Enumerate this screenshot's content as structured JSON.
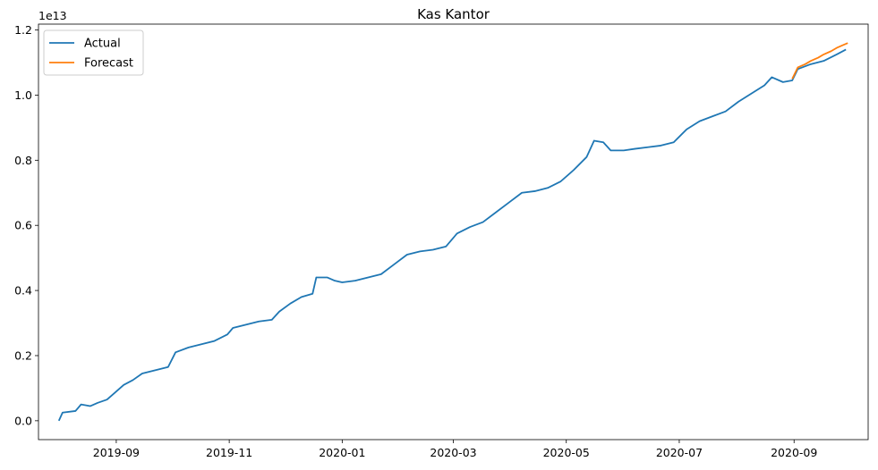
{
  "chart_data": {
    "type": "line",
    "title": "Kas Kantor",
    "xlabel": "",
    "ylabel": "",
    "y_offset_text": "1e13",
    "y_scale": 10000000000000.0,
    "ylim": [
      -0.058,
      1.218
    ],
    "xlim": [
      "2019-07-21",
      "2020-10-11"
    ],
    "x_ticks": [
      "2019-09",
      "2019-11",
      "2020-01",
      "2020-03",
      "2020-05",
      "2020-07",
      "2020-09"
    ],
    "y_ticks": [
      "0.0",
      "0.2",
      "0.4",
      "0.6",
      "0.8",
      "1.0",
      "1.2"
    ],
    "legend_position": "top-left",
    "grid": false,
    "series": [
      {
        "name": "Actual",
        "color": "#1f77b4",
        "points": [
          [
            "2019-08-01",
            0.0
          ],
          [
            "2019-08-03",
            0.025
          ],
          [
            "2019-08-10",
            0.03
          ],
          [
            "2019-08-13",
            0.05
          ],
          [
            "2019-08-18",
            0.045
          ],
          [
            "2019-08-22",
            0.055
          ],
          [
            "2019-08-27",
            0.065
          ],
          [
            "2019-08-31",
            0.085
          ],
          [
            "2019-09-05",
            0.11
          ],
          [
            "2019-09-10",
            0.125
          ],
          [
            "2019-09-15",
            0.145
          ],
          [
            "2019-09-22",
            0.155
          ],
          [
            "2019-09-29",
            0.165
          ],
          [
            "2019-10-03",
            0.21
          ],
          [
            "2019-10-10",
            0.225
          ],
          [
            "2019-10-17",
            0.235
          ],
          [
            "2019-10-24",
            0.245
          ],
          [
            "2019-10-31",
            0.265
          ],
          [
            "2019-11-03",
            0.285
          ],
          [
            "2019-11-10",
            0.295
          ],
          [
            "2019-11-17",
            0.305
          ],
          [
            "2019-11-24",
            0.31
          ],
          [
            "2019-11-28",
            0.335
          ],
          [
            "2019-12-04",
            0.36
          ],
          [
            "2019-12-10",
            0.38
          ],
          [
            "2019-12-16",
            0.39
          ],
          [
            "2019-12-18",
            0.44
          ],
          [
            "2019-12-24",
            0.44
          ],
          [
            "2019-12-28",
            0.43
          ],
          [
            "2020-01-01",
            0.425
          ],
          [
            "2020-01-08",
            0.43
          ],
          [
            "2020-01-15",
            0.44
          ],
          [
            "2020-01-22",
            0.45
          ],
          [
            "2020-01-29",
            0.48
          ],
          [
            "2020-02-05",
            0.51
          ],
          [
            "2020-02-12",
            0.52
          ],
          [
            "2020-02-19",
            0.525
          ],
          [
            "2020-02-26",
            0.535
          ],
          [
            "2020-03-03",
            0.575
          ],
          [
            "2020-03-10",
            0.595
          ],
          [
            "2020-03-17",
            0.61
          ],
          [
            "2020-03-24",
            0.64
          ],
          [
            "2020-03-31",
            0.67
          ],
          [
            "2020-04-07",
            0.7
          ],
          [
            "2020-04-14",
            0.705
          ],
          [
            "2020-04-21",
            0.715
          ],
          [
            "2020-04-28",
            0.735
          ],
          [
            "2020-05-05",
            0.77
          ],
          [
            "2020-05-12",
            0.81
          ],
          [
            "2020-05-16",
            0.86
          ],
          [
            "2020-05-21",
            0.855
          ],
          [
            "2020-05-25",
            0.83
          ],
          [
            "2020-06-01",
            0.83
          ],
          [
            "2020-06-07",
            0.835
          ],
          [
            "2020-06-14",
            0.84
          ],
          [
            "2020-06-21",
            0.845
          ],
          [
            "2020-06-28",
            0.855
          ],
          [
            "2020-07-05",
            0.895
          ],
          [
            "2020-07-12",
            0.92
          ],
          [
            "2020-07-19",
            0.935
          ],
          [
            "2020-07-26",
            0.95
          ],
          [
            "2020-08-02",
            0.98
          ],
          [
            "2020-08-09",
            1.005
          ],
          [
            "2020-08-16",
            1.03
          ],
          [
            "2020-08-20",
            1.055
          ],
          [
            "2020-08-26",
            1.04
          ],
          [
            "2020-08-31",
            1.045
          ],
          [
            "2020-09-03",
            1.08
          ],
          [
            "2020-09-10",
            1.095
          ],
          [
            "2020-09-17",
            1.105
          ],
          [
            "2020-09-24",
            1.125
          ],
          [
            "2020-09-29",
            1.14
          ]
        ]
      },
      {
        "name": "Forecast",
        "color": "#ff7f0e",
        "points": [
          [
            "2020-08-31",
            1.05
          ],
          [
            "2020-09-03",
            1.085
          ],
          [
            "2020-09-07",
            1.095
          ],
          [
            "2020-09-10",
            1.105
          ],
          [
            "2020-09-14",
            1.115
          ],
          [
            "2020-09-17",
            1.125
          ],
          [
            "2020-09-21",
            1.135
          ],
          [
            "2020-09-24",
            1.145
          ],
          [
            "2020-09-28",
            1.155
          ],
          [
            "2020-09-30",
            1.16
          ]
        ]
      }
    ]
  }
}
